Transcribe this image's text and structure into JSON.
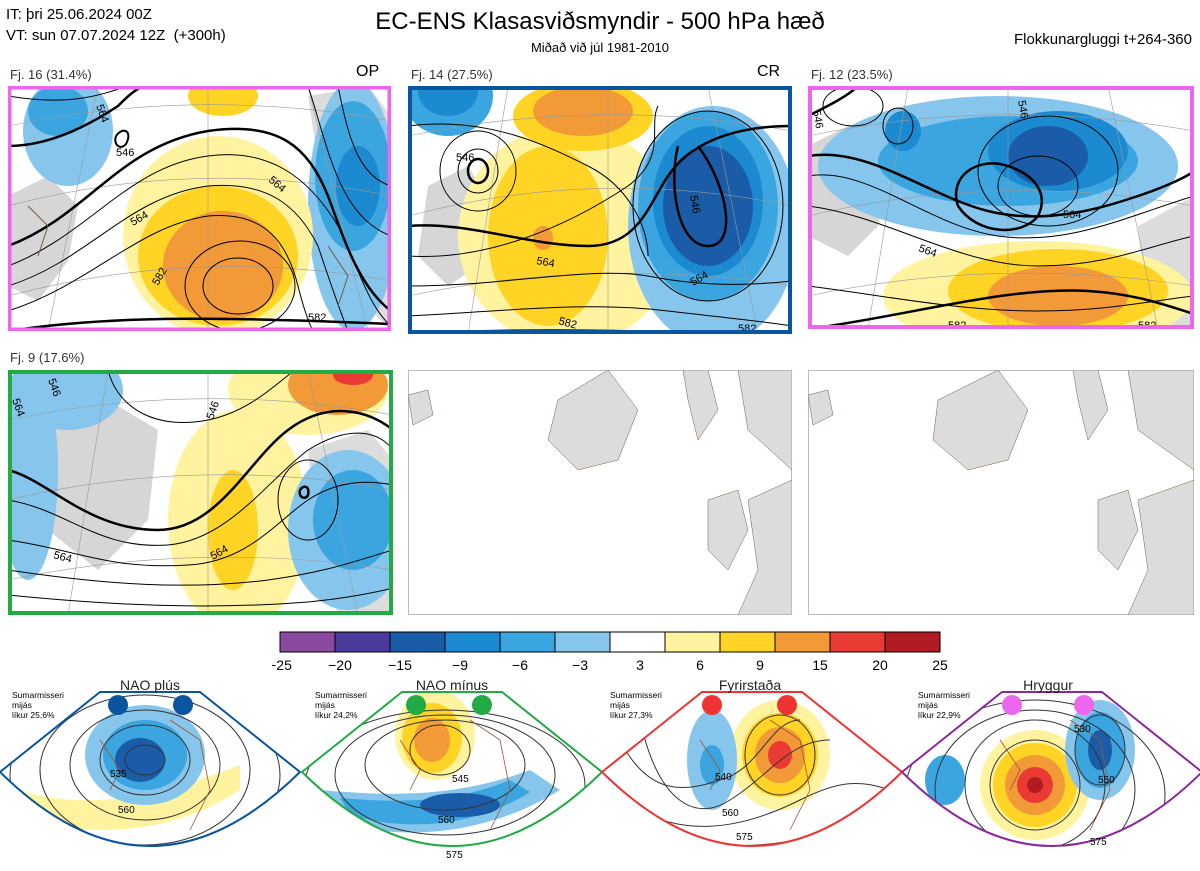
{
  "header": {
    "it_line": "IT: þri 25.06.2024 00Z",
    "vt_line": "VT: sun 07.07.2024 12Z  (+300h)",
    "title": "EC-ENS Klasasviðsmyndir - 500 hPa hæð",
    "subtitle": "Miðað við júl 1981-2010",
    "window": "Flokkunargluggi t+264-360"
  },
  "clusters": [
    {
      "title": "Fj. 16 (31.4%)",
      "tag": "OP",
      "border": "#ee66ee",
      "labels": [
        "564",
        "546",
        "564",
        "582",
        "582",
        "564"
      ]
    },
    {
      "title": "Fj. 14 (27.5%)",
      "tag": "CR",
      "border": "#0a55a0",
      "labels": [
        "546",
        "564",
        "546",
        "564",
        "582",
        "582"
      ]
    },
    {
      "title": "Fj. 12 (23.5%)",
      "tag": "",
      "border": "#ee66ee",
      "labels": [
        "546",
        "564",
        "564",
        "582",
        "582"
      ]
    },
    {
      "title": "Fj. 9 (17.6%)",
      "tag": "",
      "border": "#22aa44",
      "labels": [
        "564",
        "546",
        "546",
        "564",
        "564"
      ]
    }
  ],
  "colorbar": {
    "ticks": [
      "−25",
      "−20",
      "−15",
      "−9",
      "−6",
      "−3",
      "3",
      "6",
      "9",
      "15",
      "20",
      "25"
    ],
    "colors": [
      "#8a4aa0",
      "#4a3a9a",
      "#1a5ca8",
      "#1c8ad0",
      "#3ba5e0",
      "#86c6ec",
      "#ffffff",
      "#fff3a0",
      "#ffd424",
      "#f29a38",
      "#ea3a34",
      "#b01c22"
    ]
  },
  "regimes": [
    {
      "name": "NAO plús",
      "info": "Sumarmisseri\nmijás\nlíkur 25,6%",
      "color": "#0a55a0",
      "labels": [
        "535",
        "560"
      ]
    },
    {
      "name": "NAO mínus",
      "info": "Sumarmisseri\nmijás\nlíkur 24,2%",
      "color": "#22aa44",
      "labels": [
        "545",
        "560",
        "575"
      ]
    },
    {
      "name": "Fyrirstaða",
      "info": "Sumarmisseri\nmijás\nlíkur 27,3%",
      "color": "#ee3333",
      "labels": [
        "540",
        "560",
        "575"
      ]
    },
    {
      "name": "Hryggur",
      "info": "Sumarmisseri\nmijás\nlíkur 22,9%",
      "color": "#ee66ee",
      "labels": [
        "530",
        "550",
        "575"
      ]
    }
  ]
}
